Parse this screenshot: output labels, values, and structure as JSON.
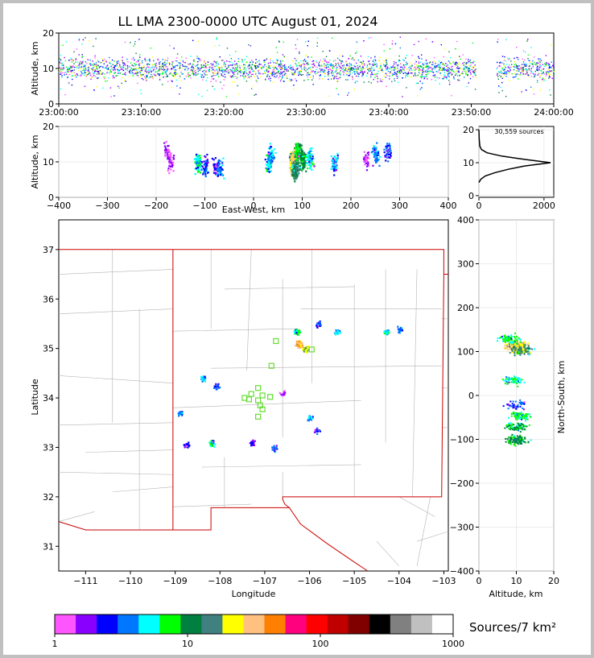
{
  "title": "LL LMA 2300-0000 UTC August 01, 2024",
  "timeline": {
    "ylabel": "Altitude, km",
    "ylim": [
      0,
      20
    ],
    "yticks": [
      "0",
      "10",
      "20"
    ],
    "xticks": [
      "23:00:00",
      "23:10:00",
      "23:20:00",
      "23:30:00",
      "23:40:00",
      "23:50:00",
      "24:00:00"
    ],
    "gap_minutes": [
      50.5,
      53.0
    ]
  },
  "ew_panel": {
    "ylabel": "Altitude, km",
    "xlabel": "East-West, km",
    "xlim": [
      -400,
      400
    ],
    "ylim": [
      0,
      20
    ],
    "xticks": [
      "-400",
      "-300",
      "-200",
      "-100",
      "0",
      "100",
      "200",
      "300",
      "400"
    ],
    "yticks": [
      "0",
      "10",
      "20"
    ]
  },
  "hist_panel": {
    "annotation": "30,559 sources",
    "xticks": [
      "0",
      "2000"
    ],
    "yticks": [
      "0",
      "10",
      "20"
    ]
  },
  "map_panel": {
    "xlabel": "Longitude",
    "ylabel": "Latitude",
    "xlim": [
      -111.6,
      -102.9
    ],
    "ylim": [
      30.5,
      37.6
    ],
    "xticks": [
      "-111",
      "-110",
      "-109",
      "-108",
      "-107",
      "-106",
      "-105",
      "-104",
      "-103"
    ],
    "yticks": [
      "31",
      "32",
      "33",
      "34",
      "35",
      "36",
      "37"
    ],
    "stations": [
      [
        -106.75,
        35.15
      ],
      [
        -105.95,
        34.98
      ],
      [
        -106.85,
        34.65
      ],
      [
        -107.15,
        34.2
      ],
      [
        -107.3,
        34.08
      ],
      [
        -107.05,
        34.05
      ],
      [
        -107.45,
        34.0
      ],
      [
        -107.35,
        33.97
      ],
      [
        -107.15,
        33.95
      ],
      [
        -106.88,
        34.02
      ],
      [
        -107.1,
        33.85
      ],
      [
        -107.05,
        33.77
      ],
      [
        -107.15,
        33.62
      ]
    ]
  },
  "ns_panel": {
    "xlabel": "Altitude, km",
    "ylabel": "North-South, km",
    "xticks": [
      "0",
      "10",
      "20"
    ],
    "yticks": [
      "400",
      "300",
      "200",
      "100",
      "0",
      "-100",
      "-200",
      "-300",
      "-400"
    ]
  },
  "colorbar": {
    "label": "Sources/7 km²",
    "ticks": [
      "1",
      "10",
      "100",
      "1000"
    ],
    "colors": [
      "#ff55ff",
      "#8a00ff",
      "#0000ff",
      "#0077ff",
      "#00ffff",
      "#00ff00",
      "#008040",
      "#408080",
      "#ffff00",
      "#ffc080",
      "#ff8000",
      "#ff007f",
      "#ff0000",
      "#c00000",
      "#800000",
      "#000000",
      "#808080",
      "#c0c0c0",
      "#ffffff"
    ]
  },
  "chart_data": [
    {
      "type": "scatter",
      "title": "LL LMA 2300-0000 UTC August 01, 2024",
      "xlabel": "",
      "ylabel": "Altitude, km",
      "xlim": [
        "23:00:00",
        "24:00:00"
      ],
      "ylim": [
        0,
        20
      ],
      "note": "source density vs time; sources concentrated at 5-15 km with core near 10 km; no sources 23:50:30-23:53:00"
    },
    {
      "type": "heatmap",
      "xlabel": "East-West, km",
      "ylabel": "Altitude, km",
      "xlim": [
        -400,
        400
      ],
      "ylim": [
        0,
        20
      ],
      "cells": [
        {
          "x": -180,
          "y": 13,
          "v": 2
        },
        {
          "x": -170,
          "y": 10,
          "v": 2
        },
        {
          "x": -115,
          "y": 10,
          "v": 8
        },
        {
          "x": -100,
          "y": 9,
          "v": 4
        },
        {
          "x": -80,
          "y": 9,
          "v": 3
        },
        {
          "x": -70,
          "y": 8,
          "v": 5
        },
        {
          "x": 30,
          "y": 10,
          "v": 8
        },
        {
          "x": 35,
          "y": 12,
          "v": 6
        },
        {
          "x": 80,
          "y": 10,
          "v": 40
        },
        {
          "x": 85,
          "y": 8,
          "v": 20
        },
        {
          "x": 90,
          "y": 13,
          "v": 12
        },
        {
          "x": 100,
          "y": 11,
          "v": 15
        },
        {
          "x": 115,
          "y": 11,
          "v": 8
        },
        {
          "x": 165,
          "y": 10,
          "v": 6
        },
        {
          "x": 230,
          "y": 11,
          "v": 2
        },
        {
          "x": 250,
          "y": 12,
          "v": 5
        },
        {
          "x": 275,
          "y": 13,
          "v": 4
        }
      ]
    },
    {
      "type": "line",
      "xlabel": "",
      "ylabel": "",
      "x_label_note": "source count per altitude",
      "xlim": [
        0,
        2300
      ],
      "ylim": [
        0,
        21
      ],
      "points": [
        [
          0,
          4
        ],
        [
          60,
          5
        ],
        [
          200,
          6
        ],
        [
          500,
          7
        ],
        [
          900,
          8
        ],
        [
          1400,
          9
        ],
        [
          2200,
          10
        ],
        [
          1400,
          11
        ],
        [
          700,
          12
        ],
        [
          250,
          13
        ],
        [
          80,
          14
        ],
        [
          30,
          15
        ],
        [
          10,
          17
        ],
        [
          0,
          20
        ]
      ]
    },
    {
      "type": "heatmap",
      "xlabel": "Longitude",
      "ylabel": "Latitude",
      "xlim": [
        -111.6,
        -102.9
      ],
      "ylim": [
        30.5,
        37.6
      ],
      "cells": [
        {
          "x": -106.25,
          "y": 35.1,
          "v": 60
        },
        {
          "x": -106.1,
          "y": 35.0,
          "v": 30
        },
        {
          "x": -106.3,
          "y": 35.35,
          "v": 10
        },
        {
          "x": -105.8,
          "y": 35.5,
          "v": 4
        },
        {
          "x": -105.4,
          "y": 35.35,
          "v": 6
        },
        {
          "x": -104.3,
          "y": 35.35,
          "v": 8
        },
        {
          "x": -104.0,
          "y": 35.4,
          "v": 6
        },
        {
          "x": -108.4,
          "y": 34.4,
          "v": 6
        },
        {
          "x": -108.1,
          "y": 34.25,
          "v": 4
        },
        {
          "x": -108.9,
          "y": 33.7,
          "v": 5
        },
        {
          "x": -108.2,
          "y": 33.1,
          "v": 8
        },
        {
          "x": -107.3,
          "y": 33.1,
          "v": 3
        },
        {
          "x": -106.8,
          "y": 33.0,
          "v": 5
        },
        {
          "x": -106.0,
          "y": 33.6,
          "v": 6
        },
        {
          "x": -105.85,
          "y": 33.35,
          "v": 4
        },
        {
          "x": -108.75,
          "y": 33.05,
          "v": 3
        },
        {
          "x": -106.6,
          "y": 34.1,
          "v": 2
        }
      ]
    },
    {
      "type": "heatmap",
      "xlabel": "Altitude, km",
      "ylabel": "North-South, km",
      "xlim": [
        0,
        20
      ],
      "ylim": [
        -400,
        400
      ],
      "cells": [
        {
          "x": 10,
          "y": 115,
          "v": 40
        },
        {
          "x": 11,
          "y": 105,
          "v": 25
        },
        {
          "x": 8,
          "y": 130,
          "v": 10
        },
        {
          "x": 9,
          "y": 35,
          "v": 8
        },
        {
          "x": 10,
          "y": -20,
          "v": 4
        },
        {
          "x": 11,
          "y": -45,
          "v": 10
        },
        {
          "x": 10,
          "y": -70,
          "v": 12
        },
        {
          "x": 10,
          "y": -100,
          "v": 15
        }
      ]
    }
  ]
}
